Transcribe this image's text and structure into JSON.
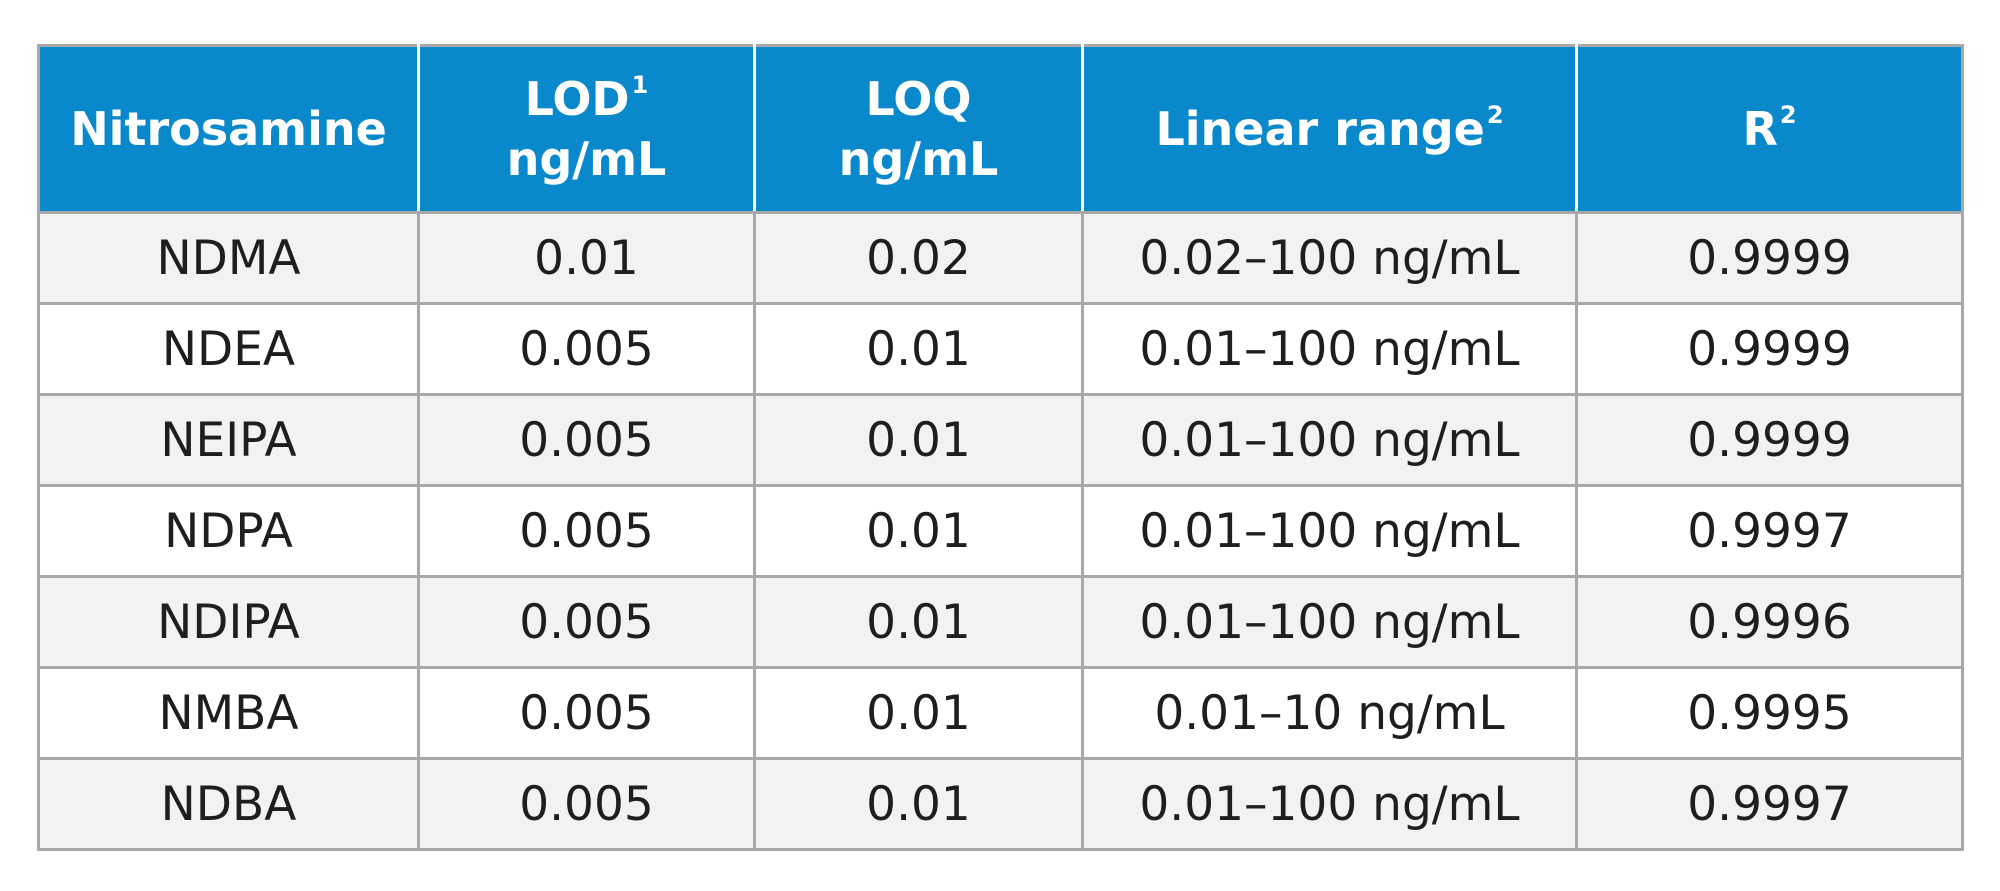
{
  "table": {
    "headers": [
      {
        "lines": [
          "Nitrosamine"
        ],
        "sup": ""
      },
      {
        "lines": [
          "LOD",
          "ng/mL"
        ],
        "sup": "1"
      },
      {
        "lines": [
          "LOQ",
          "ng/mL"
        ],
        "sup": ""
      },
      {
        "lines": [
          "Linear range"
        ],
        "sup": "2"
      },
      {
        "lines": [
          "R"
        ],
        "sup": "2"
      }
    ],
    "rows": [
      [
        "NDMA",
        "0.01",
        "0.02",
        "0.02–100 ng/mL",
        "0.9999"
      ],
      [
        "NDEA",
        "0.005",
        "0.01",
        "0.01–100 ng/mL",
        "0.9999"
      ],
      [
        "NEIPA",
        "0.005",
        "0.01",
        "0.01–100 ng/mL",
        "0.9999"
      ],
      [
        "NDPA",
        "0.005",
        "0.01",
        "0.01–100 ng/mL",
        "0.9997"
      ],
      [
        "NDIPA",
        "0.005",
        "0.01",
        "0.01–100 ng/mL",
        "0.9996"
      ],
      [
        "NMBA",
        "0.005",
        "0.01",
        "0.01–10 ng/mL",
        "0.9995"
      ],
      [
        "NDBA",
        "0.005",
        "0.01",
        "0.01–100 ng/mL",
        "0.9997"
      ]
    ]
  },
  "colors": {
    "header_background": "#0a88cc",
    "header_text": "#ffffff",
    "row_shade": "#f2f2f4",
    "grid_line": "#a8a8a8"
  }
}
